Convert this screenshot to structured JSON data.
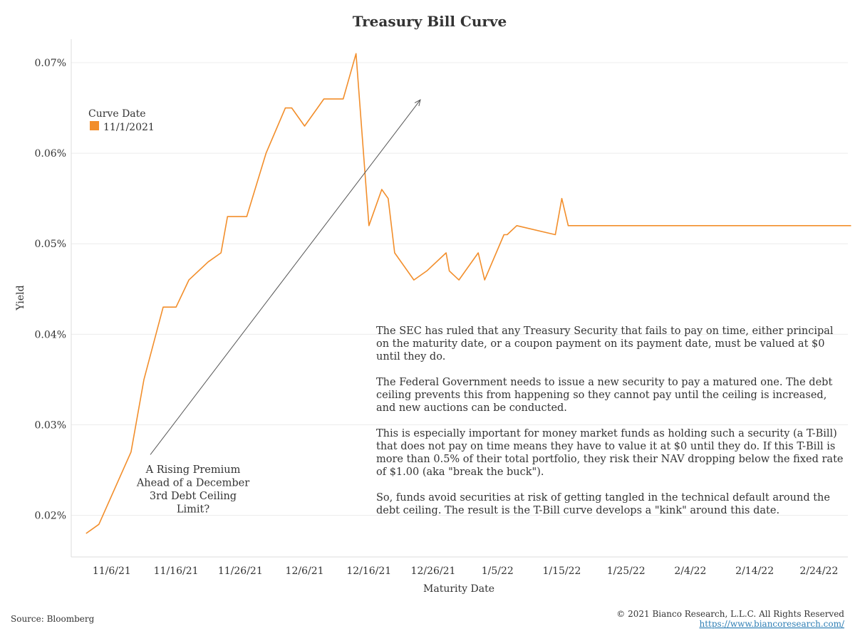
{
  "chart_data": {
    "type": "line",
    "title": "Treasury Bill Curve",
    "xlabel": "Maturity Date",
    "ylabel": "Yield",
    "y_unit": "%",
    "ylim": [
      0.0154,
      0.0726
    ],
    "yticks": [
      0.02,
      0.03,
      0.04,
      0.05,
      0.06,
      0.07
    ],
    "ytick_labels": [
      "0.02%",
      "0.03%",
      "0.04%",
      "0.05%",
      "0.06%",
      "0.07%"
    ],
    "xlim_days": [
      -2.3,
      118.5
    ],
    "x_note": "x values are days after 11/2/2021",
    "xticks_days": [
      4,
      14,
      24,
      34,
      44,
      54,
      64,
      74,
      84,
      94,
      104,
      114
    ],
    "xtick_labels": [
      "11/6/21",
      "11/16/21",
      "11/26/21",
      "12/6/21",
      "12/16/21",
      "12/26/21",
      "1/5/22",
      "1/15/22",
      "1/25/22",
      "2/4/22",
      "2/14/22",
      "2/24/22"
    ],
    "legend": {
      "title": "Curve Date",
      "placement": "top-left"
    },
    "grid": true,
    "series": [
      {
        "name": "11/1/2021",
        "color": "#f28e2b",
        "x": [
          0,
          2,
          7,
          9,
          12,
          14,
          16,
          19,
          21,
          22,
          23,
          25,
          28,
          31,
          32,
          34,
          36,
          37,
          38,
          40,
          42,
          44,
          46,
          47,
          48,
          51,
          53,
          56,
          56.5,
          58,
          61,
          62,
          65,
          65.5,
          67,
          73,
          74,
          75,
          79,
          84,
          85,
          89,
          91,
          96,
          98,
          102,
          104,
          108,
          110,
          114,
          115,
          119
        ],
        "y": [
          0.018,
          0.019,
          0.027,
          0.035,
          0.043,
          0.043,
          0.046,
          0.048,
          0.049,
          0.053,
          0.053,
          0.053,
          0.06,
          0.065,
          0.065,
          0.063,
          0.065,
          0.066,
          0.066,
          0.066,
          0.071,
          0.052,
          0.056,
          0.055,
          0.049,
          0.046,
          0.047,
          0.049,
          0.047,
          0.046,
          0.049,
          0.046,
          0.051,
          0.051,
          0.052,
          0.051,
          0.055,
          0.052,
          0.052,
          0.052,
          0.052,
          0.052,
          0.052,
          0.052,
          0.052,
          0.052,
          0.052,
          0.052,
          0.052,
          0.052,
          0.052,
          0.052
        ]
      }
    ],
    "annotations": {
      "arrow_label": [
        "A Rising Premium",
        "Ahead of a December",
        "3rd Debt Ceiling",
        "Limit?"
      ],
      "arrow_from": {
        "x": 10,
        "y": 0.0267
      },
      "arrow_to": {
        "x": 52,
        "y": 0.0659
      },
      "text_block": [
        "The SEC has ruled that any Treasury Security that fails to pay on time, either principal",
        "on the maturity date, or a coupon payment on its payment date, must be valued at $0",
        "until they do.",
        "",
        "The Federal Government needs to issue a new security to pay a matured one.  The debt",
        "ceiling prevents this from happening so they cannot pay until the ceiling is increased,",
        "and new auctions can be conducted.",
        "",
        "This is especially important for money market funds as holding such a security (a T-Bill)",
        "that does not pay on time means they have to value it at $0 until they do. If this T-Bill is",
        "more than 0.5% of their total portfolio, they risk their NAV dropping below the fixed rate",
        "of $1.00 (aka \"break the buck\").",
        "",
        "So, funds avoid securities at risk of getting tangled in the technical default around the",
        "debt ceiling. The result is the T-Bill curve develops a \"kink\" around this date."
      ]
    }
  },
  "footer": {
    "source": "Source: Bloomberg",
    "copyright": "© 2021 Bianco Research, L.L.C. All Rights Reserved",
    "url": "https://www.biancoresearch.com/"
  }
}
